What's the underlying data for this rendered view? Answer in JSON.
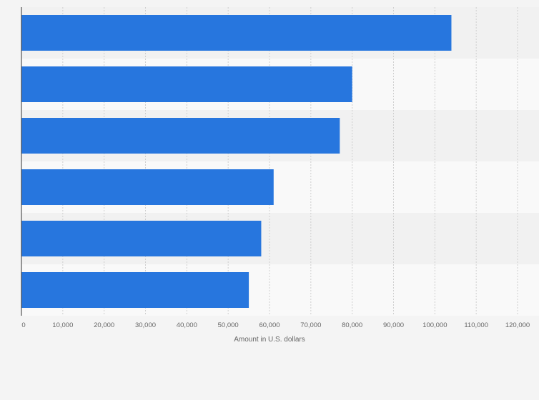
{
  "chart_data": {
    "type": "bar",
    "orientation": "horizontal",
    "categories": [
      "",
      "",
      "",
      "",
      "",
      ""
    ],
    "values": [
      104000,
      80000,
      77000,
      61000,
      58000,
      55000
    ],
    "xlabel": "Amount in U.S. dollars",
    "ylabel": "",
    "xlim": [
      0,
      120000
    ],
    "x_ticks": [
      "0",
      "10,000",
      "20,000",
      "30,000",
      "40,000",
      "50,000",
      "60,000",
      "70,000",
      "80,000",
      "90,000",
      "100,000",
      "110,000",
      "120,000"
    ],
    "grid": true,
    "legend": "none",
    "colors": {
      "bar": "#2776de",
      "band_dark": "#f1f1f1",
      "band_light": "#f9f9f9",
      "grid": "#cfcfcf",
      "axis": "#333333",
      "text": "#666666"
    }
  }
}
